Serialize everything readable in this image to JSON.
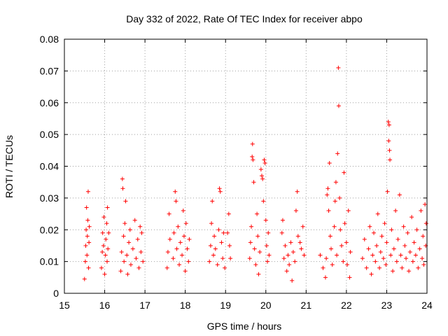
{
  "chart_data": {
    "type": "scatter",
    "title": "Day 332 of 2022, Rate Of TEC Index for receiver abpo",
    "xlabel": "GPS time / hours",
    "ylabel": "ROTI / TECUs",
    "xlim": [
      15,
      24
    ],
    "ylim": [
      0,
      0.08
    ],
    "xticks": [
      "15",
      "16",
      "17",
      "18",
      "19",
      "20",
      "21",
      "22",
      "23",
      "24"
    ],
    "yticks": [
      "0",
      "0.01",
      "0.02",
      "0.03",
      "0.04",
      "0.05",
      "0.06",
      "0.07",
      "0.08"
    ],
    "grid": true,
    "marker": "+",
    "color": "#ff0000",
    "series": [
      {
        "points": [
          [
            15.5,
            0.0045
          ],
          [
            15.52,
            0.01
          ],
          [
            15.53,
            0.015
          ],
          [
            15.54,
            0.02
          ],
          [
            15.55,
            0.027
          ],
          [
            15.56,
            0.012
          ],
          [
            15.57,
            0.018
          ],
          [
            15.58,
            0.023
          ],
          [
            15.59,
            0.032
          ],
          [
            15.6,
            0.008
          ],
          [
            15.61,
            0.016
          ],
          [
            15.62,
            0.021
          ],
          [
            15.92,
            0.008
          ],
          [
            15.94,
            0.013
          ],
          [
            15.95,
            0.019
          ],
          [
            15.97,
            0.015
          ],
          [
            15.98,
            0.024
          ],
          [
            16.0,
            0.006
          ],
          [
            16.02,
            0.012
          ],
          [
            16.03,
            0.017
          ],
          [
            16.05,
            0.022
          ],
          [
            16.06,
            0.01
          ],
          [
            16.07,
            0.027
          ],
          [
            16.08,
            0.014
          ],
          [
            16.1,
            0.019
          ],
          [
            16.4,
            0.007
          ],
          [
            16.42,
            0.013
          ],
          [
            16.44,
            0.036
          ],
          [
            16.45,
            0.033
          ],
          [
            16.47,
            0.018
          ],
          [
            16.48,
            0.01
          ],
          [
            16.5,
            0.022
          ],
          [
            16.52,
            0.029
          ],
          [
            16.55,
            0.012
          ],
          [
            16.57,
            0.006
          ],
          [
            16.6,
            0.016
          ],
          [
            16.63,
            0.02
          ],
          [
            16.65,
            0.009
          ],
          [
            16.7,
            0.014
          ],
          [
            16.75,
            0.023
          ],
          [
            16.78,
            0.011
          ],
          [
            16.82,
            0.017
          ],
          [
            16.85,
            0.008
          ],
          [
            16.88,
            0.021
          ],
          [
            16.9,
            0.013
          ],
          [
            16.92,
            0.019
          ],
          [
            16.95,
            0.01
          ],
          [
            17.55,
            0.008
          ],
          [
            17.57,
            0.013
          ],
          [
            17.6,
            0.025
          ],
          [
            17.62,
            0.017
          ],
          [
            17.7,
            0.011
          ],
          [
            17.72,
            0.019
          ],
          [
            17.75,
            0.032
          ],
          [
            17.77,
            0.029
          ],
          [
            17.79,
            0.014
          ],
          [
            17.82,
            0.021
          ],
          [
            17.85,
            0.009
          ],
          [
            17.88,
            0.016
          ],
          [
            17.92,
            0.012
          ],
          [
            17.95,
            0.026
          ],
          [
            17.97,
            0.018
          ],
          [
            18.0,
            0.007
          ],
          [
            18.02,
            0.022
          ],
          [
            18.05,
            0.014
          ],
          [
            18.08,
            0.01
          ],
          [
            18.1,
            0.017
          ],
          [
            18.6,
            0.01
          ],
          [
            18.63,
            0.015
          ],
          [
            18.65,
            0.022
          ],
          [
            18.67,
            0.029
          ],
          [
            18.7,
            0.012
          ],
          [
            18.72,
            0.018
          ],
          [
            18.75,
            0.014
          ],
          [
            18.8,
            0.009
          ],
          [
            18.83,
            0.02
          ],
          [
            18.85,
            0.033
          ],
          [
            18.87,
            0.032
          ],
          [
            18.9,
            0.016
          ],
          [
            18.93,
            0.011
          ],
          [
            18.95,
            0.019
          ],
          [
            18.98,
            0.008
          ],
          [
            19.05,
            0.019
          ],
          [
            19.08,
            0.025
          ],
          [
            19.1,
            0.015
          ],
          [
            19.12,
            0.011
          ],
          [
            19.6,
            0.011
          ],
          [
            19.62,
            0.016
          ],
          [
            19.64,
            0.021
          ],
          [
            19.66,
            0.043
          ],
          [
            19.67,
            0.047
          ],
          [
            19.68,
            0.042
          ],
          [
            19.7,
            0.035
          ],
          [
            19.72,
            0.014
          ],
          [
            19.75,
            0.009
          ],
          [
            19.78,
            0.025
          ],
          [
            19.8,
            0.018
          ],
          [
            19.82,
            0.006
          ],
          [
            19.85,
            0.013
          ],
          [
            19.88,
            0.039
          ],
          [
            19.9,
            0.037
          ],
          [
            19.92,
            0.036
          ],
          [
            19.94,
            0.029
          ],
          [
            19.96,
            0.042
          ],
          [
            19.98,
            0.041
          ],
          [
            20.0,
            0.023
          ],
          [
            20.02,
            0.015
          ],
          [
            20.04,
            0.01
          ],
          [
            20.06,
            0.019
          ],
          [
            20.08,
            0.012
          ],
          [
            20.4,
            0.019
          ],
          [
            20.42,
            0.023
          ],
          [
            20.45,
            0.011
          ],
          [
            20.48,
            0.015
          ],
          [
            20.52,
            0.007
          ],
          [
            20.55,
            0.012
          ],
          [
            20.58,
            0.009
          ],
          [
            20.62,
            0.016
          ],
          [
            20.65,
            0.004
          ],
          [
            20.68,
            0.013
          ],
          [
            20.72,
            0.01
          ],
          [
            20.75,
            0.026
          ],
          [
            20.78,
            0.032
          ],
          [
            20.8,
            0.018
          ],
          [
            20.85,
            0.016
          ],
          [
            20.88,
            0.014
          ],
          [
            20.92,
            0.021
          ],
          [
            20.95,
            0.012
          ],
          [
            21.35,
            0.012
          ],
          [
            21.42,
            0.008
          ],
          [
            21.48,
            0.005
          ],
          [
            21.5,
            0.011
          ],
          [
            21.52,
            0.031
          ],
          [
            21.54,
            0.033
          ],
          [
            21.56,
            0.026
          ],
          [
            21.58,
            0.041
          ],
          [
            21.6,
            0.018
          ],
          [
            21.62,
            0.014
          ],
          [
            21.65,
            0.009
          ],
          [
            21.7,
            0.021
          ],
          [
            21.72,
            0.029
          ],
          [
            21.74,
            0.035
          ],
          [
            21.76,
            0.012
          ],
          [
            21.78,
            0.044
          ],
          [
            21.8,
            0.071
          ],
          [
            21.81,
            0.059
          ],
          [
            21.83,
            0.03
          ],
          [
            21.85,
            0.02
          ],
          [
            21.88,
            0.015
          ],
          [
            21.92,
            0.01
          ],
          [
            21.94,
            0.038
          ],
          [
            21.96,
            0.022
          ],
          [
            22.0,
            0.016
          ],
          [
            22.02,
            0.009
          ],
          [
            22.05,
            0.026
          ],
          [
            22.08,
            0.005
          ],
          [
            22.1,
            0.013
          ],
          [
            22.4,
            0.011
          ],
          [
            22.45,
            0.017
          ],
          [
            22.5,
            0.008
          ],
          [
            22.55,
            0.014
          ],
          [
            22.58,
            0.021
          ],
          [
            22.62,
            0.006
          ],
          [
            22.65,
            0.012
          ],
          [
            22.68,
            0.019
          ],
          [
            22.72,
            0.01
          ],
          [
            22.75,
            0.015
          ],
          [
            22.78,
            0.025
          ],
          [
            22.82,
            0.008
          ],
          [
            22.85,
            0.013
          ],
          [
            22.88,
            0.018
          ],
          [
            22.92,
            0.011
          ],
          [
            22.95,
            0.022
          ],
          [
            22.98,
            0.009
          ],
          [
            23.0,
            0.016
          ],
          [
            23.02,
            0.032
          ],
          [
            23.04,
            0.054
          ],
          [
            23.06,
            0.053
          ],
          [
            23.05,
            0.048
          ],
          [
            23.07,
            0.045
          ],
          [
            23.08,
            0.042
          ],
          [
            23.1,
            0.012
          ],
          [
            23.12,
            0.02
          ],
          [
            23.15,
            0.007
          ],
          [
            23.18,
            0.014
          ],
          [
            23.22,
            0.026
          ],
          [
            23.25,
            0.01
          ],
          [
            23.28,
            0.017
          ],
          [
            23.32,
            0.031
          ],
          [
            23.35,
            0.012
          ],
          [
            23.38,
            0.008
          ],
          [
            23.42,
            0.021
          ],
          [
            23.45,
            0.015
          ],
          [
            23.48,
            0.011
          ],
          [
            23.52,
            0.019
          ],
          [
            23.55,
            0.007
          ],
          [
            23.58,
            0.013
          ],
          [
            23.62,
            0.024
          ],
          [
            23.65,
            0.01
          ],
          [
            23.68,
            0.016
          ],
          [
            23.72,
            0.012
          ],
          [
            23.75,
            0.02
          ],
          [
            23.78,
            0.008
          ],
          [
            23.82,
            0.014
          ],
          [
            23.85,
            0.026
          ],
          [
            23.88,
            0.011
          ],
          [
            23.9,
            0.018
          ],
          [
            23.92,
            0.009
          ],
          [
            23.95,
            0.028
          ],
          [
            23.97,
            0.015
          ],
          [
            23.98,
            0.022
          ]
        ]
      }
    ]
  }
}
